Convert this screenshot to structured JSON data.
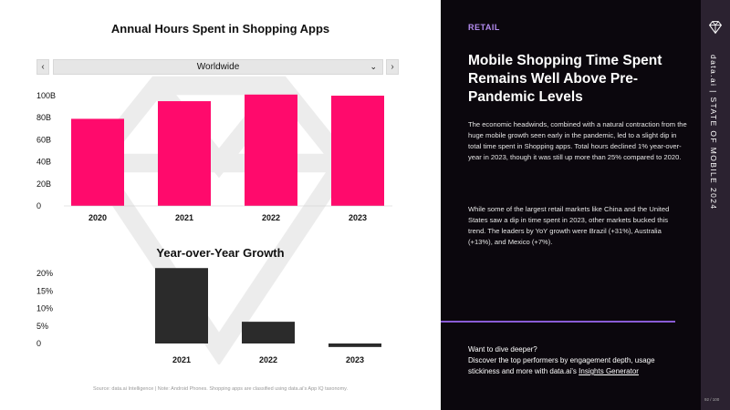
{
  "left": {
    "chart1_title": "Annual Hours Spent in Shopping Apps",
    "chart2_title": "Year-over-Year Growth",
    "region_selector": {
      "value": "Worldwide",
      "prev": "‹",
      "next": "›",
      "chevron": "⌄"
    },
    "source_note": "Source: data.ai Intelligence | Note: Android Phones. Shopping apps are classified using data.ai's App IQ taxonomy."
  },
  "right": {
    "section_tag": "RETAIL",
    "headline": "Mobile Shopping Time Spent Remains Well Above Pre-Pandemic Levels",
    "paragraph1": "The economic headwinds, combined with a natural contraction from the huge mobile growth seen early in the pandemic, led to a slight dip in total time spent in Shopping apps. Total hours declined 1% year-over-year in 2023, though it was still up more than 25% compared to 2020.",
    "paragraph2": "While some of the largest retail markets like China and the United States saw a dip in time spent in 2023, other markets bucked this trend. The leaders by YoY growth were Brazil (+31%), Australia (+13%), and Mexico (+7%).",
    "cta_text": "Want to dive deeper?\nDiscover the top performers by engagement depth, usage stickiness and more with data.ai's",
    "cta_link": "Insights Generator"
  },
  "sidebar": {
    "brand_text": "data.ai | STATE OF MOBILE 2024",
    "page_number": "92 / 100",
    "logo_icon": "diamond-icon"
  },
  "colors": {
    "bar_primary": "#ff0a6c",
    "bar_secondary": "#2b2b2b",
    "accent": "#8a5cd6"
  },
  "chart_data": [
    {
      "type": "bar",
      "title": "Annual Hours Spent in Shopping Apps",
      "categories": [
        "2020",
        "2021",
        "2022",
        "2023"
      ],
      "values": [
        79,
        95,
        101,
        100
      ],
      "ylim": [
        0,
        100
      ],
      "yticks": [
        "0",
        "20B",
        "40B",
        "60B",
        "80B",
        "100B"
      ],
      "ytick_values": [
        0,
        20,
        40,
        60,
        80,
        100
      ],
      "grid": false
    },
    {
      "type": "bar",
      "title": "Year-over-Year Growth",
      "categories": [
        "2021",
        "2022",
        "2023"
      ],
      "values": [
        21.5,
        6.2,
        -1
      ],
      "ylim": [
        0,
        20
      ],
      "yticks": [
        "0",
        "5%",
        "10%",
        "15%",
        "20%"
      ],
      "ytick_values": [
        0,
        5,
        10,
        15,
        20
      ],
      "grid": false
    }
  ]
}
